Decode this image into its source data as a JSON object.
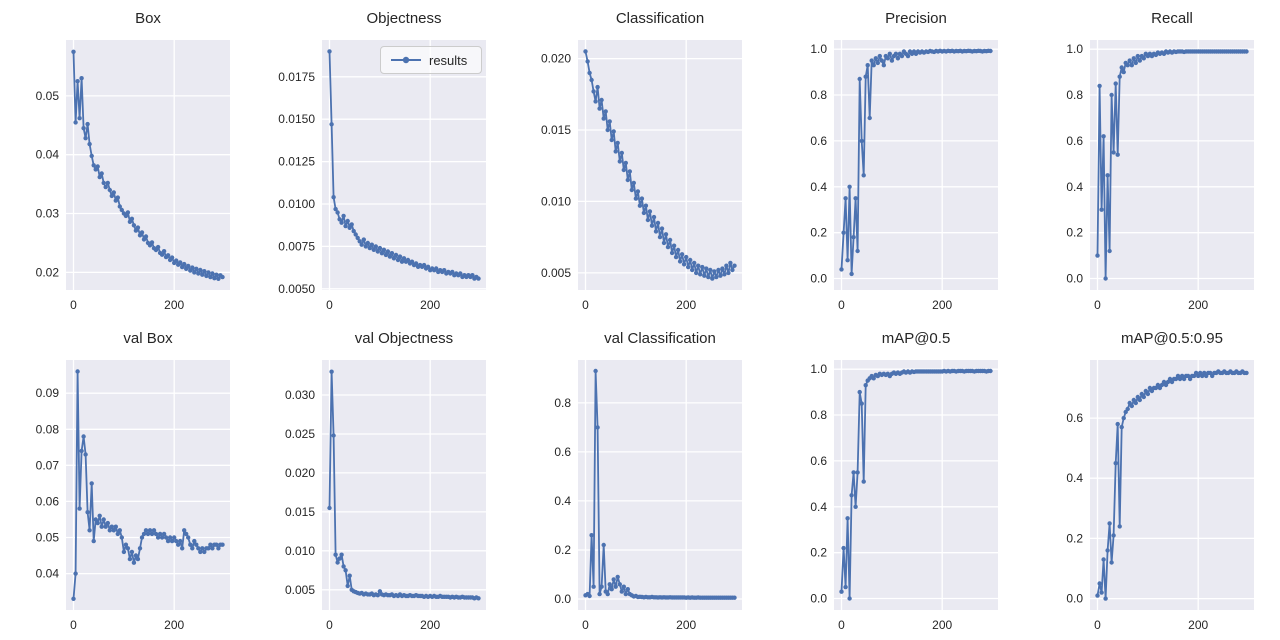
{
  "legend": {
    "label": "results"
  },
  "colors": {
    "line": "#4c72b0",
    "plot_bg": "#eaeaf2",
    "grid": "#ffffff",
    "text": "#262626",
    "figure_bg": "#ffffff"
  },
  "chart_data": [
    {
      "type": "line",
      "title": "Box",
      "series_name": "results",
      "x_start": 0,
      "x_step": 4,
      "xlim": [
        -15,
        311
      ],
      "ylim": [
        0.017,
        0.0595
      ],
      "xtick_vals": [
        0,
        200
      ],
      "xtick_labels": [
        "0",
        "200"
      ],
      "ytick_vals": [
        0.02,
        0.03,
        0.04,
        0.05
      ],
      "ytick_labels": [
        "0.02",
        "0.03",
        "0.04",
        "0.05"
      ],
      "grid": true,
      "legend_position": "none",
      "y": [
        0.0575,
        0.0455,
        0.0525,
        0.0462,
        0.053,
        0.0445,
        0.0428,
        0.0452,
        0.0418,
        0.0398,
        0.0382,
        0.0375,
        0.038,
        0.0362,
        0.0368,
        0.0352,
        0.0345,
        0.0352,
        0.034,
        0.033,
        0.0336,
        0.0322,
        0.0327,
        0.0312,
        0.0306,
        0.03,
        0.0296,
        0.0302,
        0.0286,
        0.0291,
        0.028,
        0.0271,
        0.0276,
        0.0263,
        0.0268,
        0.0256,
        0.0261,
        0.025,
        0.0246,
        0.0251,
        0.0241,
        0.0238,
        0.0243,
        0.0233,
        0.023,
        0.0236,
        0.0226,
        0.0229,
        0.0221,
        0.0225,
        0.0216,
        0.022,
        0.0213,
        0.0217,
        0.0209,
        0.0214,
        0.0206,
        0.0211,
        0.0203,
        0.0208,
        0.02,
        0.0206,
        0.0198,
        0.0204,
        0.0196,
        0.0202,
        0.0194,
        0.02,
        0.0192,
        0.0198,
        0.019,
        0.0196,
        0.0189,
        0.0195,
        0.0192
      ]
    },
    {
      "type": "line",
      "title": "Objectness",
      "series_name": "results",
      "x_start": 0,
      "x_step": 4,
      "xlim": [
        -15,
        311
      ],
      "ylim": [
        0.00493,
        0.01967
      ],
      "xtick_vals": [
        0,
        200
      ],
      "xtick_labels": [
        "0",
        "200"
      ],
      "ytick_vals": [
        0.005,
        0.0075,
        0.01,
        0.0125,
        0.015,
        0.0175
      ],
      "ytick_labels": [
        "0.0050",
        "0.0075",
        "0.0100",
        "0.0125",
        "0.0150",
        "0.0175"
      ],
      "grid": true,
      "legend_position": "upper right",
      "y": [
        0.019,
        0.0147,
        0.0104,
        0.0097,
        0.0095,
        0.0091,
        0.0089,
        0.0093,
        0.0087,
        0.009,
        0.0086,
        0.0088,
        0.0084,
        0.0082,
        0.008,
        0.0078,
        0.0076,
        0.0079,
        0.0075,
        0.0077,
        0.0074,
        0.0076,
        0.0073,
        0.0075,
        0.0072,
        0.0074,
        0.0071,
        0.0073,
        0.007,
        0.0072,
        0.0069,
        0.0071,
        0.0068,
        0.007,
        0.0067,
        0.0069,
        0.0066,
        0.0068,
        0.0066,
        0.0067,
        0.0065,
        0.0066,
        0.0064,
        0.0065,
        0.0063,
        0.0064,
        0.0063,
        0.0064,
        0.0062,
        0.0063,
        0.0061,
        0.0062,
        0.0061,
        0.0062,
        0.006,
        0.0061,
        0.006,
        0.0061,
        0.0059,
        0.006,
        0.0059,
        0.006,
        0.0058,
        0.0059,
        0.0058,
        0.0059,
        0.0057,
        0.0058,
        0.0057,
        0.0058,
        0.0057,
        0.0058,
        0.0056,
        0.0057,
        0.0056
      ]
    },
    {
      "type": "line",
      "title": "Classification",
      "series_name": "results",
      "x_start": 0,
      "x_step": 4,
      "xlim": [
        -15,
        311
      ],
      "ylim": [
        0.0038,
        0.0213
      ],
      "xtick_vals": [
        0,
        200
      ],
      "xtick_labels": [
        "0",
        "200"
      ],
      "ytick_vals": [
        0.005,
        0.01,
        0.015,
        0.02
      ],
      "ytick_labels": [
        "0.005",
        "0.010",
        "0.015",
        "0.020"
      ],
      "grid": true,
      "legend_position": "none",
      "y": [
        0.0205,
        0.0198,
        0.019,
        0.0185,
        0.0177,
        0.017,
        0.018,
        0.0165,
        0.0171,
        0.0158,
        0.0163,
        0.015,
        0.0156,
        0.0143,
        0.0149,
        0.0135,
        0.0141,
        0.0128,
        0.0134,
        0.0122,
        0.0127,
        0.0115,
        0.0121,
        0.0108,
        0.0113,
        0.0102,
        0.0107,
        0.0097,
        0.0102,
        0.0092,
        0.0097,
        0.0087,
        0.0093,
        0.0083,
        0.0089,
        0.0079,
        0.0085,
        0.0075,
        0.0081,
        0.0071,
        0.0077,
        0.0068,
        0.0073,
        0.0064,
        0.0069,
        0.0061,
        0.0066,
        0.0058,
        0.0063,
        0.0056,
        0.0061,
        0.0054,
        0.0059,
        0.0052,
        0.0057,
        0.005,
        0.0055,
        0.0049,
        0.0054,
        0.0048,
        0.0053,
        0.0047,
        0.0052,
        0.0046,
        0.0051,
        0.0047,
        0.0052,
        0.0048,
        0.0053,
        0.0049,
        0.0055,
        0.005,
        0.0057,
        0.0052,
        0.0055
      ]
    },
    {
      "type": "line",
      "title": "Precision",
      "series_name": "results",
      "x_start": 0,
      "x_step": 4,
      "xlim": [
        -15,
        311
      ],
      "ylim": [
        -0.05,
        1.04
      ],
      "xtick_vals": [
        0,
        200
      ],
      "xtick_labels": [
        "0",
        "200"
      ],
      "ytick_vals": [
        0,
        0.2,
        0.4,
        0.6,
        0.8,
        1.0
      ],
      "ytick_labels": [
        "0.0",
        "0.2",
        "0.4",
        "0.6",
        "0.8",
        "1.0"
      ],
      "grid": true,
      "legend_position": "none",
      "y": [
        0.04,
        0.2,
        0.35,
        0.08,
        0.4,
        0.02,
        0.18,
        0.35,
        0.12,
        0.87,
        0.6,
        0.45,
        0.88,
        0.93,
        0.7,
        0.95,
        0.93,
        0.96,
        0.94,
        0.97,
        0.95,
        0.93,
        0.97,
        0.96,
        0.98,
        0.95,
        0.97,
        0.98,
        0.96,
        0.98,
        0.97,
        0.99,
        0.98,
        0.97,
        0.99,
        0.98,
        0.99,
        0.98,
        0.99,
        0.985,
        0.99,
        0.985,
        0.99,
        0.988,
        0.992,
        0.99,
        0.988,
        0.992,
        0.99,
        0.993,
        0.99,
        0.992,
        0.99,
        0.993,
        0.991,
        0.993,
        0.99,
        0.992,
        0.991,
        0.993,
        0.99,
        0.992,
        0.991,
        0.993,
        0.992,
        0.99,
        0.992,
        0.991,
        0.993,
        0.992,
        0.99,
        0.992,
        0.991,
        0.993,
        0.992
      ]
    },
    {
      "type": "line",
      "title": "Recall",
      "series_name": "results",
      "x_start": 0,
      "x_step": 4,
      "xlim": [
        -15,
        311
      ],
      "ylim": [
        -0.05,
        1.04
      ],
      "xtick_vals": [
        0,
        200
      ],
      "xtick_labels": [
        "0",
        "200"
      ],
      "ytick_vals": [
        0,
        0.2,
        0.4,
        0.6,
        0.8,
        1.0
      ],
      "ytick_labels": [
        "0.0",
        "0.2",
        "0.4",
        "0.6",
        "0.8",
        "1.0"
      ],
      "grid": true,
      "legend_position": "none",
      "y": [
        0.1,
        0.84,
        0.3,
        0.62,
        0.0,
        0.45,
        0.12,
        0.8,
        0.55,
        0.85,
        0.54,
        0.88,
        0.92,
        0.9,
        0.94,
        0.93,
        0.95,
        0.93,
        0.96,
        0.94,
        0.97,
        0.95,
        0.97,
        0.96,
        0.98,
        0.97,
        0.98,
        0.97,
        0.98,
        0.975,
        0.985,
        0.98,
        0.985,
        0.98,
        0.99,
        0.985,
        0.99,
        0.985,
        0.99,
        0.988,
        0.99,
        0.99,
        0.99,
        0.988,
        0.99,
        0.99,
        0.99,
        0.99,
        0.99,
        0.99,
        0.99,
        0.99,
        0.99,
        0.99,
        0.99,
        0.99,
        0.99,
        0.99,
        0.99,
        0.99,
        0.99,
        0.99,
        0.99,
        0.99,
        0.99,
        0.99,
        0.99,
        0.99,
        0.99,
        0.99,
        0.99,
        0.99,
        0.99,
        0.99,
        0.99
      ]
    },
    {
      "type": "line",
      "title": "val Box",
      "series_name": "results",
      "x_start": 0,
      "x_step": 4,
      "xlim": [
        -15,
        311
      ],
      "ylim": [
        0.0299,
        0.0992
      ],
      "xtick_vals": [
        0,
        200
      ],
      "xtick_labels": [
        "0",
        "200"
      ],
      "ytick_vals": [
        0.04,
        0.05,
        0.06,
        0.07,
        0.08,
        0.09
      ],
      "ytick_labels": [
        "0.04",
        "0.05",
        "0.06",
        "0.07",
        "0.08",
        "0.09"
      ],
      "grid": true,
      "legend_position": "none",
      "y": [
        0.033,
        0.04,
        0.096,
        0.058,
        0.074,
        0.078,
        0.073,
        0.057,
        0.052,
        0.065,
        0.049,
        0.055,
        0.054,
        0.056,
        0.053,
        0.055,
        0.053,
        0.054,
        0.052,
        0.053,
        0.052,
        0.053,
        0.051,
        0.052,
        0.05,
        0.046,
        0.048,
        0.047,
        0.044,
        0.046,
        0.043,
        0.045,
        0.044,
        0.047,
        0.05,
        0.051,
        0.052,
        0.051,
        0.052,
        0.051,
        0.052,
        0.051,
        0.05,
        0.051,
        0.05,
        0.051,
        0.05,
        0.049,
        0.05,
        0.049,
        0.05,
        0.049,
        0.048,
        0.049,
        0.047,
        0.052,
        0.051,
        0.05,
        0.048,
        0.047,
        0.049,
        0.048,
        0.047,
        0.046,
        0.047,
        0.046,
        0.047,
        0.047,
        0.048,
        0.047,
        0.048,
        0.048,
        0.047,
        0.048,
        0.048
      ]
    },
    {
      "type": "line",
      "title": "val Objectness",
      "series_name": "results",
      "x_start": 0,
      "x_step": 4,
      "xlim": [
        -15,
        311
      ],
      "ylim": [
        0.0024,
        0.0345
      ],
      "xtick_vals": [
        0,
        200
      ],
      "xtick_labels": [
        "0",
        "200"
      ],
      "ytick_vals": [
        0.005,
        0.01,
        0.015,
        0.02,
        0.025,
        0.03
      ],
      "ytick_labels": [
        "0.005",
        "0.010",
        "0.015",
        "0.020",
        "0.025",
        "0.030"
      ],
      "grid": true,
      "legend_position": "none",
      "y": [
        0.0155,
        0.033,
        0.0248,
        0.0095,
        0.0085,
        0.009,
        0.0095,
        0.008,
        0.0075,
        0.0055,
        0.0068,
        0.005,
        0.0048,
        0.0047,
        0.0046,
        0.0045,
        0.0046,
        0.0044,
        0.0045,
        0.0044,
        0.0044,
        0.0045,
        0.0043,
        0.0044,
        0.0043,
        0.0048,
        0.0044,
        0.0043,
        0.0044,
        0.0043,
        0.0043,
        0.0044,
        0.0042,
        0.0043,
        0.0042,
        0.0044,
        0.0042,
        0.0043,
        0.0042,
        0.0042,
        0.0043,
        0.0042,
        0.0042,
        0.0043,
        0.0042,
        0.0042,
        0.0042,
        0.0041,
        0.0042,
        0.0041,
        0.0042,
        0.0041,
        0.0042,
        0.0041,
        0.0041,
        0.0042,
        0.0041,
        0.0041,
        0.0041,
        0.0041,
        0.004,
        0.0041,
        0.004,
        0.0041,
        0.004,
        0.004,
        0.0041,
        0.004,
        0.004,
        0.004,
        0.004,
        0.004,
        0.0039,
        0.004,
        0.0039
      ]
    },
    {
      "type": "line",
      "title": "val Classification",
      "series_name": "results",
      "x_start": 0,
      "x_step": 4,
      "xlim": [
        -15,
        311
      ],
      "ylim": [
        -0.045,
        0.975
      ],
      "xtick_vals": [
        0,
        200
      ],
      "xtick_labels": [
        "0",
        "200"
      ],
      "ytick_vals": [
        0,
        0.2,
        0.4,
        0.6,
        0.8
      ],
      "ytick_labels": [
        "0.0",
        "0.2",
        "0.4",
        "0.6",
        "0.8"
      ],
      "grid": true,
      "legend_position": "none",
      "y": [
        0.015,
        0.02,
        0.012,
        0.26,
        0.05,
        0.93,
        0.7,
        0.02,
        0.05,
        0.22,
        0.03,
        0.02,
        0.06,
        0.04,
        0.08,
        0.05,
        0.09,
        0.06,
        0.03,
        0.05,
        0.02,
        0.04,
        0.02,
        0.015,
        0.01,
        0.012,
        0.008,
        0.009,
        0.008,
        0.007,
        0.008,
        0.007,
        0.007,
        0.008,
        0.007,
        0.007,
        0.006,
        0.007,
        0.006,
        0.007,
        0.006,
        0.006,
        0.007,
        0.006,
        0.006,
        0.006,
        0.006,
        0.006,
        0.006,
        0.006,
        0.005,
        0.006,
        0.005,
        0.006,
        0.005,
        0.005,
        0.006,
        0.005,
        0.005,
        0.005,
        0.005,
        0.005,
        0.005,
        0.005,
        0.005,
        0.005,
        0.005,
        0.005,
        0.005,
        0.005,
        0.005,
        0.005,
        0.005,
        0.005,
        0.005
      ]
    },
    {
      "type": "line",
      "title": "mAP@0.5",
      "series_name": "results",
      "x_start": 0,
      "x_step": 4,
      "xlim": [
        -15,
        311
      ],
      "ylim": [
        -0.05,
        1.04
      ],
      "xtick_vals": [
        0,
        200
      ],
      "xtick_labels": [
        "0",
        "200"
      ],
      "ytick_vals": [
        0,
        0.2,
        0.4,
        0.6,
        0.8,
        1.0
      ],
      "ytick_labels": [
        "0.0",
        "0.2",
        "0.4",
        "0.6",
        "0.8",
        "1.0"
      ],
      "grid": true,
      "legend_position": "none",
      "y": [
        0.03,
        0.22,
        0.05,
        0.35,
        0.0,
        0.45,
        0.55,
        0.4,
        0.55,
        0.9,
        0.85,
        0.51,
        0.93,
        0.95,
        0.96,
        0.97,
        0.96,
        0.975,
        0.97,
        0.98,
        0.975,
        0.98,
        0.975,
        0.98,
        0.97,
        0.98,
        0.985,
        0.98,
        0.985,
        0.98,
        0.985,
        0.99,
        0.985,
        0.99,
        0.985,
        0.99,
        0.988,
        0.99,
        0.99,
        0.99,
        0.99,
        0.99,
        0.99,
        0.99,
        0.99,
        0.99,
        0.99,
        0.99,
        0.99,
        0.99,
        0.99,
        0.992,
        0.99,
        0.992,
        0.99,
        0.992,
        0.992,
        0.99,
        0.992,
        0.992,
        0.992,
        0.99,
        0.992,
        0.992,
        0.992,
        0.992,
        0.99,
        0.992,
        0.992,
        0.992,
        0.992,
        0.992,
        0.99,
        0.992,
        0.992
      ]
    },
    {
      "type": "line",
      "title": "mAP@0.5:0.95",
      "series_name": "results",
      "x_start": 0,
      "x_step": 4,
      "xlim": [
        -15,
        311
      ],
      "ylim": [
        -0.038,
        0.793
      ],
      "xtick_vals": [
        0,
        200
      ],
      "xtick_labels": [
        "0",
        "200"
      ],
      "ytick_vals": [
        0,
        0.2,
        0.4,
        0.6
      ],
      "ytick_labels": [
        "0.0",
        "0.2",
        "0.4",
        "0.6"
      ],
      "grid": true,
      "legend_position": "none",
      "y": [
        0.01,
        0.05,
        0.02,
        0.13,
        0.0,
        0.16,
        0.25,
        0.12,
        0.21,
        0.45,
        0.58,
        0.24,
        0.57,
        0.6,
        0.62,
        0.63,
        0.65,
        0.64,
        0.66,
        0.65,
        0.67,
        0.66,
        0.68,
        0.67,
        0.69,
        0.68,
        0.7,
        0.69,
        0.7,
        0.7,
        0.71,
        0.7,
        0.71,
        0.72,
        0.71,
        0.72,
        0.73,
        0.72,
        0.73,
        0.73,
        0.74,
        0.73,
        0.74,
        0.73,
        0.74,
        0.74,
        0.73,
        0.74,
        0.74,
        0.75,
        0.74,
        0.75,
        0.74,
        0.75,
        0.74,
        0.75,
        0.75,
        0.74,
        0.75,
        0.75,
        0.755,
        0.75,
        0.75,
        0.755,
        0.75,
        0.75,
        0.755,
        0.75,
        0.75,
        0.755,
        0.75,
        0.75,
        0.755,
        0.75,
        0.75
      ]
    }
  ]
}
